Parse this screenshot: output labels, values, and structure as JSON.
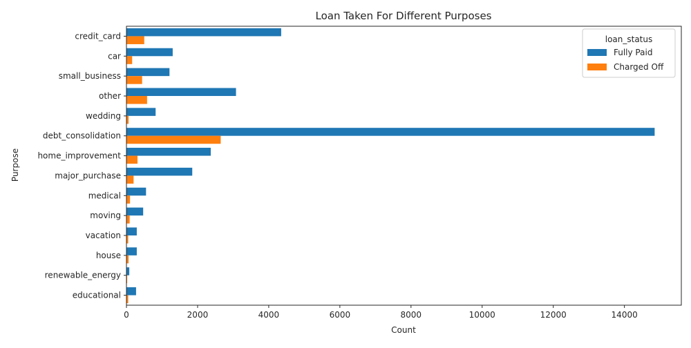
{
  "chart_data": {
    "type": "bar",
    "orientation": "horizontal",
    "title": "Loan Taken For Different Purposes",
    "xlabel": "Count",
    "ylabel": "Purpose",
    "xlim": [
      0,
      15600
    ],
    "xticks": [
      0,
      2000,
      4000,
      6000,
      8000,
      10000,
      12000,
      14000
    ],
    "xtick_labels": [
      "0",
      "2000",
      "4000",
      "6000",
      "8000",
      "10000",
      "12000",
      "14000"
    ],
    "grid": false,
    "legend": {
      "title": "loan_status",
      "placement": "top-right"
    },
    "categories": [
      "credit_card",
      "car",
      "small_business",
      "other",
      "wedding",
      "debt_consolidation",
      "home_improvement",
      "major_purchase",
      "medical",
      "moving",
      "vacation",
      "house",
      "renewable_energy",
      "educational"
    ],
    "series": [
      {
        "name": "Fully Paid",
        "color": "#1f77b4",
        "values": [
          4350,
          1300,
          1210,
          3080,
          820,
          14850,
          2370,
          1850,
          550,
          470,
          290,
          290,
          80,
          270
        ]
      },
      {
        "name": "Charged Off",
        "color": "#ff7f0e",
        "values": [
          500,
          160,
          440,
          580,
          60,
          2650,
          310,
          200,
          100,
          90,
          50,
          60,
          20,
          50
        ]
      }
    ]
  }
}
